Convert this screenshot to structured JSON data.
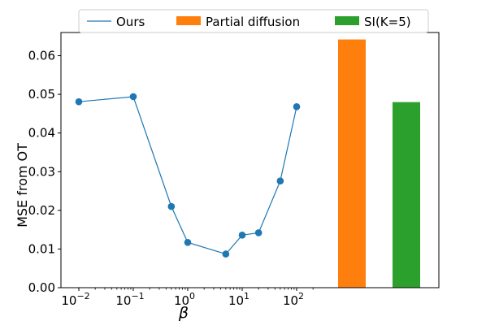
{
  "chart_data": {
    "type": "line",
    "title": "",
    "ylabel": "MSE from OT",
    "xlabel": "β",
    "xscale": "log",
    "ylim": [
      0,
      0.066
    ],
    "grid": false,
    "legend_position": "top-center",
    "yticks": [
      "0.00",
      "0.01",
      "0.02",
      "0.03",
      "0.04",
      "0.05",
      "0.06"
    ],
    "xticks": [
      {
        "value": 0.01,
        "base": "10",
        "exp": "−2"
      },
      {
        "value": 0.1,
        "base": "10",
        "exp": "−1"
      },
      {
        "value": 1,
        "base": "10",
        "exp": "0"
      },
      {
        "value": 10,
        "base": "10",
        "exp": "1"
      },
      {
        "value": 100,
        "base": "10",
        "exp": "2"
      }
    ],
    "series": [
      {
        "name": "Ours",
        "type": "line",
        "color": "#1f77b4",
        "x": [
          0.01,
          0.1,
          0.5,
          1,
          5,
          10,
          20,
          50,
          100
        ],
        "y": [
          0.0481,
          0.0494,
          0.021,
          0.0117,
          0.0087,
          0.0136,
          0.0142,
          0.0276,
          0.0468
        ]
      },
      {
        "name": "Partial diffusion",
        "type": "bar",
        "color": "#ff7f0e",
        "value": 0.0642
      },
      {
        "name": "SI(K=5)",
        "type": "bar",
        "color": "#2ca02c",
        "value": 0.048
      }
    ]
  }
}
